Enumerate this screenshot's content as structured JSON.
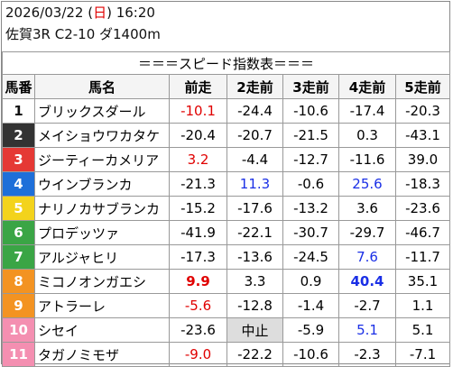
{
  "header": {
    "datetime": [
      "2026/03/22 (",
      "日",
      ") 16:20"
    ],
    "race": "佐賀3R C2-10 ダ1400m"
  },
  "table": {
    "title": "＝＝＝スピード指数表＝＝＝",
    "columns": [
      "馬番",
      "馬名",
      "前走",
      "2走前",
      "3走前",
      "4走前",
      "5走前"
    ],
    "rows": [
      [
        "1",
        "ブリックスダール",
        "-10.1",
        "-24.4",
        "-10.6",
        "-17.4",
        "-20.3"
      ],
      [
        "2",
        "メイショウワカタケ",
        "-20.4",
        "-20.7",
        "-21.5",
        "0.3",
        "-43.1"
      ],
      [
        "3",
        "ジーティーカメリア",
        "3.2",
        "-4.4",
        "-12.7",
        "-11.6",
        "39.0"
      ],
      [
        "4",
        "ウインブランカ",
        "-21.3",
        "11.3",
        "-0.6",
        "25.6",
        "-18.3"
      ],
      [
        "5",
        "ナリノカサブランカ",
        "-15.2",
        "-17.6",
        "-13.2",
        "3.6",
        "-23.6"
      ],
      [
        "6",
        "プロデッツァ",
        "-41.9",
        "-22.1",
        "-30.7",
        "-29.7",
        "-46.7"
      ],
      [
        "7",
        "アルジャヒリ",
        "-17.3",
        "-13.6",
        "-24.5",
        "7.6",
        "-11.7"
      ],
      [
        "8",
        "ミコノオンガエシ",
        "9.9",
        "3.3",
        "0.9",
        "40.4",
        "35.1"
      ],
      [
        "9",
        "アトラーレ",
        "-5.6",
        "-12.8",
        "-1.4",
        "-2.7",
        "1.1"
      ],
      [
        "10",
        "シセイ",
        "-23.6",
        "中止",
        "-5.9",
        "5.1",
        "5.1"
      ],
      [
        "11",
        "タガノミモザ",
        "-9.0",
        "-22.2",
        "-10.6",
        "-2.3",
        "-7.1"
      ]
    ]
  }
}
